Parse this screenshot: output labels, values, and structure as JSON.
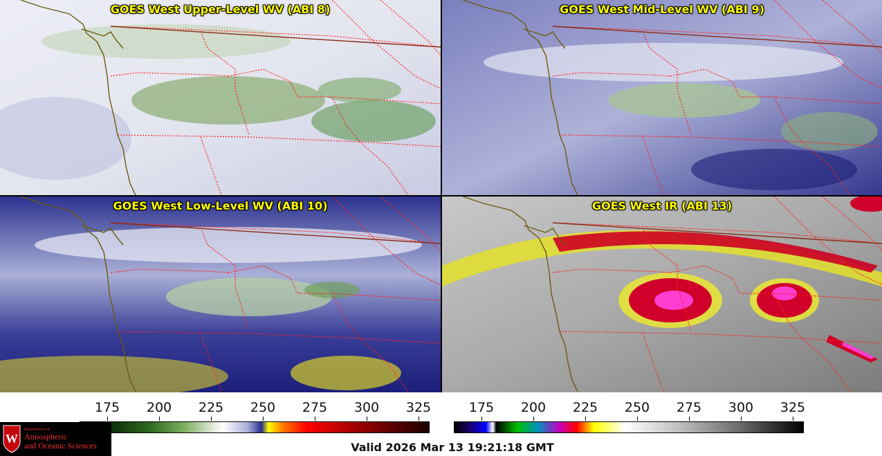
{
  "panels": [
    {
      "title": "GOES West Upper-Level WV (ABI 8)",
      "scheme": "wv_upper"
    },
    {
      "title": "GOES West Mid-Level WV (ABI 9)",
      "scheme": "wv_mid"
    },
    {
      "title": "GOES West Low-Level WV (ABI 10)",
      "scheme": "wv_low"
    },
    {
      "title": "GOES West IR (ABI 13)",
      "scheme": "ir"
    }
  ],
  "colorbar_wv": {
    "ticks": [
      "175",
      "200",
      "225",
      "250",
      "275",
      "300",
      "325"
    ]
  },
  "colorbar_ir": {
    "ticks": [
      "175",
      "200",
      "225",
      "250",
      "275",
      "300",
      "325"
    ]
  },
  "logo": {
    "line1": "Department of",
    "line2": "Atmospheric",
    "line3": "and Oceanic Sciences"
  },
  "valid_time": "Valid 2026 Mar 13 19:21:18 GMT",
  "colors": {
    "title_yellow": "#ffff00",
    "border_red": "#ff2020",
    "coast_olive": "#6b5a10"
  }
}
